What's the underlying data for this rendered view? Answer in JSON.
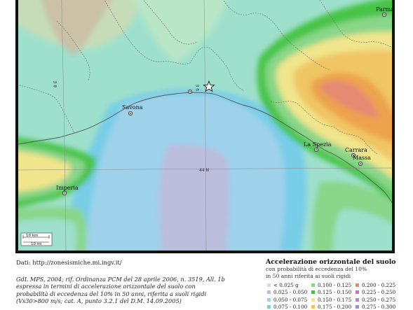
{
  "colors": {
    "c00": "#d9d9d9",
    "c01": "#bcbcdc",
    "c02": "#9ed2ea",
    "c03": "#78cde7",
    "c04": "#9fe0cd",
    "c05": "#8ad68a",
    "c06": "#47c447",
    "c07": "#f0e58c",
    "c08": "#f0c563",
    "c09": "#eda24e",
    "c10": "#e58a73",
    "c11": "#d96bbe",
    "c12": "#bd82d6",
    "c13": "#9c8ad6"
  },
  "map": {
    "cities": [
      {
        "id": "parma",
        "name": "Parma"
      },
      {
        "id": "savona",
        "name": "Savona"
      },
      {
        "id": "la-spezia",
        "name": "La Spezia"
      },
      {
        "id": "carrara",
        "name": "Carrara"
      },
      {
        "id": "massa",
        "name": "Massa"
      },
      {
        "id": "imperia",
        "name": "Imperia"
      }
    ],
    "grid_labels": {
      "lon_west": "8 E",
      "lon_east": "9 E",
      "lat": "44 N"
    },
    "scale": {
      "km": "10 km",
      "mi": "10 mi"
    }
  },
  "source": "Dati: http://zonesismiche.mi.ingv.it/",
  "caption": [
    "GdL MPS, 2004; rif. Ordinanza PCM del 28 aprile 2006, n. 3519, All. 1b",
    "espressa in termini di accelerazione orizzontale del suolo con",
    "probabilità di eccedenza del 10% in 50 anni, riferita a suoli rigidi",
    "(Vs30>800 m/s; cat. A, punto 3.2.1 del D.M. 14.09.2005)"
  ],
  "legend": {
    "title": "Accelerazione orizzontale del suolo",
    "subtitle1": "con probabilità di eccedenza del 10%",
    "subtitle2": "in 50 anni riferita ai suoli rigidi",
    "items": [
      {
        "label": "< 0.025 g",
        "color": "#d9d9d9"
      },
      {
        "label": "0.100 - 0.125",
        "color": "#8ad68a"
      },
      {
        "label": "0.200 - 0.225",
        "color": "#e58a73"
      },
      {
        "label": "0.025 - 0.050",
        "color": "#bcbcdc"
      },
      {
        "label": "0.125 - 0.150",
        "color": "#47c447"
      },
      {
        "label": "0.225 - 0.250",
        "color": "#d96bbe"
      },
      {
        "label": "0.050 - 0.075",
        "color": "#9ed2ea"
      },
      {
        "label": "0.150 - 0.175",
        "color": "#f0e58c"
      },
      {
        "label": "0.250 - 0.275",
        "color": "#bd82d6"
      },
      {
        "label": "0.075 - 0.100",
        "color": "#78cde7"
      },
      {
        "label": "0.175 - 0.200",
        "color": "#f0c563"
      },
      {
        "label": "0.275 - 0.300",
        "color": "#9c8ad6"
      }
    ]
  }
}
